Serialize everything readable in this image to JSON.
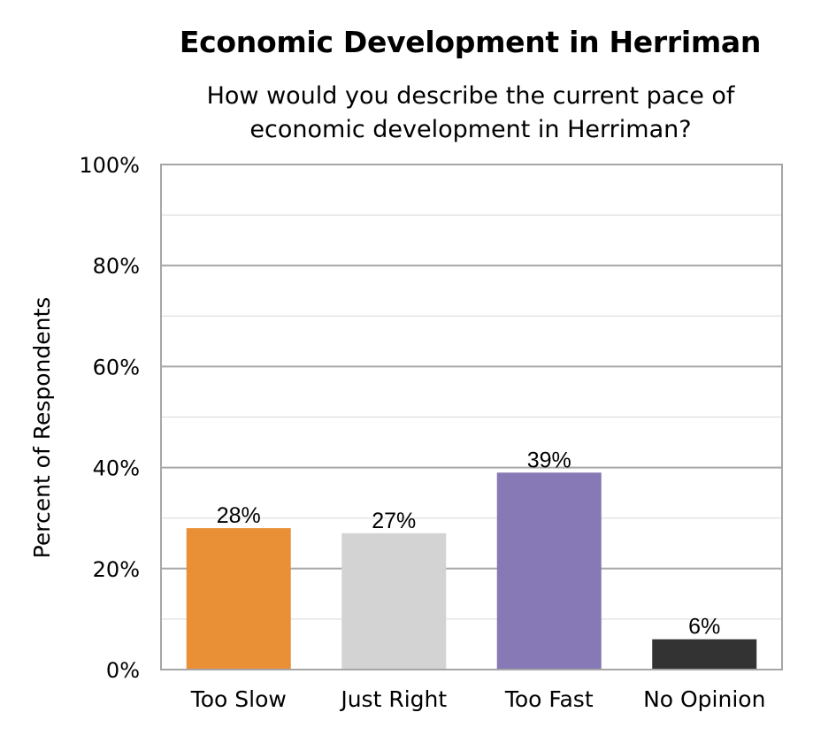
{
  "chart_data": {
    "type": "bar",
    "title": "Economic Development in Herriman",
    "subtitle": "How would you describe the current pace of economic development in Herriman?",
    "xlabel": "",
    "ylabel": "Percent of Respondents",
    "categories": [
      "Too Slow",
      "Just Right",
      "Too Fast",
      "No Opinion"
    ],
    "values": [
      28,
      27,
      39,
      6
    ],
    "value_labels": [
      "28%",
      "27%",
      "39%",
      "6%"
    ],
    "colors": [
      "#e98f36",
      "#d3d3d3",
      "#8679b5",
      "#333333"
    ],
    "ylim": [
      0,
      100
    ],
    "yticks": [
      "0%",
      "20%",
      "40%",
      "60%",
      "80%",
      "100%"
    ],
    "grid": true,
    "legend": "none"
  }
}
